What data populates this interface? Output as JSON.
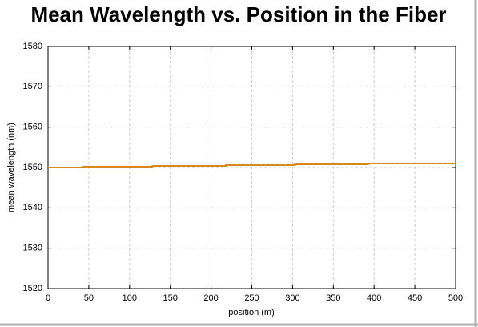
{
  "chart_data": {
    "type": "line",
    "title": "Mean Wavelength vs. Position in the Fiber",
    "x_label": "position (m)",
    "y_label": "mean wavelength (nm)",
    "x": [
      0,
      43,
      43,
      128,
      128,
      218,
      218,
      303,
      303,
      393,
      393,
      500
    ],
    "series": [
      {
        "color": "#d9861a",
        "values": [
          1550.0,
          1550.0,
          1550.2,
          1550.2,
          1550.4,
          1550.4,
          1550.6,
          1550.6,
          1550.8,
          1550.8,
          1551.0,
          1551.0
        ]
      }
    ],
    "xlim": [
      0,
      500
    ],
    "xticks": [
      0,
      50,
      100,
      150,
      200,
      250,
      300,
      350,
      400,
      450,
      500
    ],
    "ylim": [
      1520,
      1580
    ],
    "yticks": [
      1520,
      1530,
      1540,
      1550,
      1560,
      1570,
      1580
    ],
    "grid": true
  }
}
